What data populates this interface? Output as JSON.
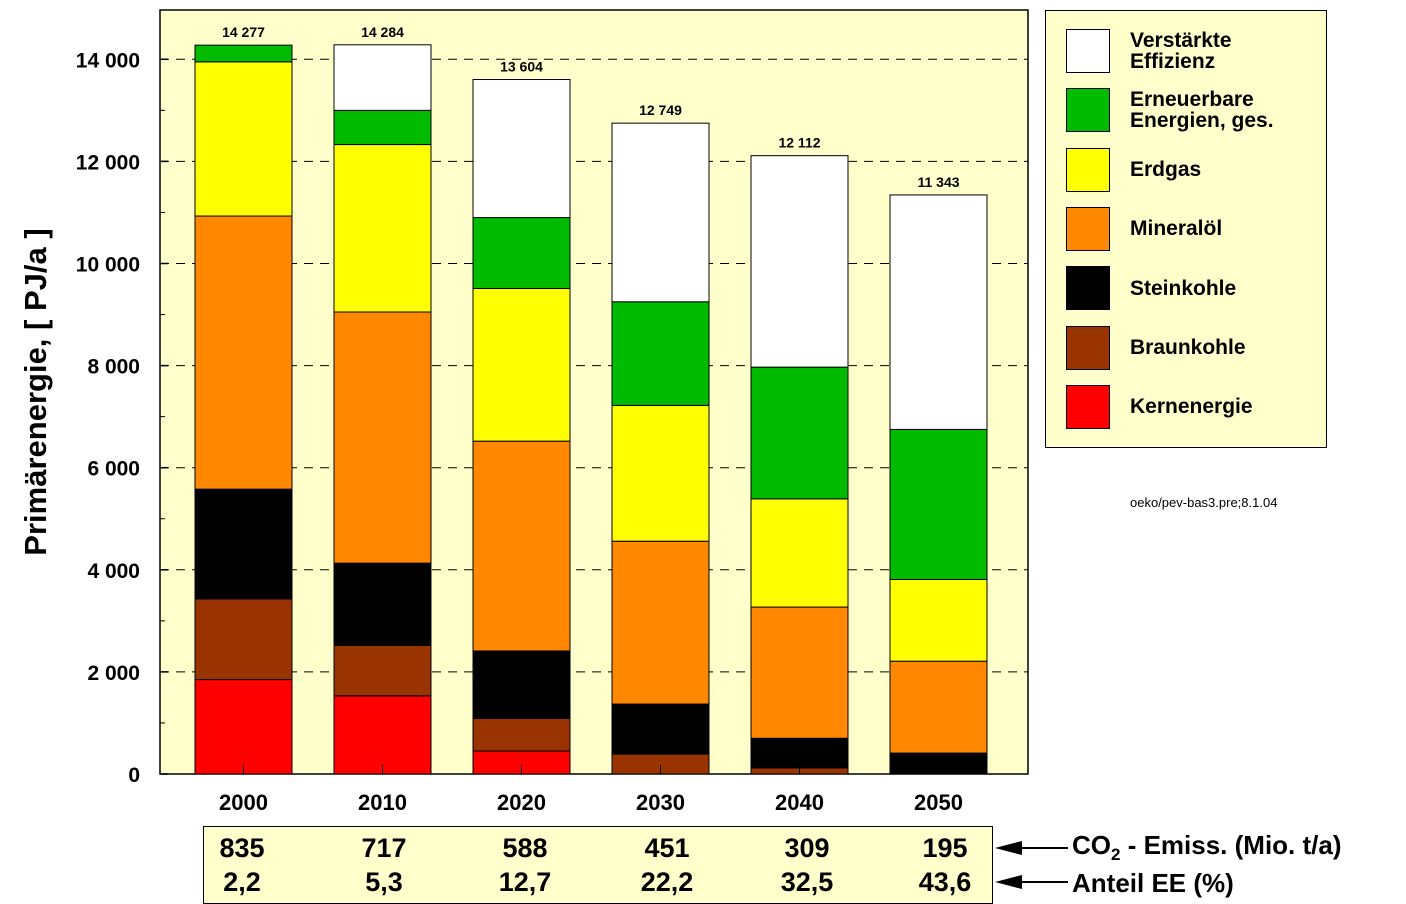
{
  "chart_data": {
    "type": "bar",
    "stacked": true,
    "ylabel": "Primärenergie, [ PJ/a ]",
    "ylim": [
      0,
      15000
    ],
    "yticks": [
      0,
      2000,
      4000,
      6000,
      8000,
      10000,
      12000,
      14000
    ],
    "ytick_labels": [
      "0",
      "2 000",
      "4 000",
      "6 000",
      "8 000",
      "10 000",
      "12 000",
      "14 000"
    ],
    "grid": "dashed horizontal",
    "categories": [
      "2000",
      "2010",
      "2020",
      "2030",
      "2040",
      "2050"
    ],
    "totals": [
      14277,
      14284,
      13604,
      12749,
      12112,
      11343
    ],
    "total_labels": [
      "14 277",
      "14 284",
      "13 604",
      "12 749",
      "12 112",
      "11 343"
    ],
    "series": [
      {
        "name": "Kernenergie",
        "color": "#ff0000",
        "values": [
          1850,
          1530,
          450,
          0,
          0,
          0
        ]
      },
      {
        "name": "Braunkohle",
        "color": "#993300",
        "values": [
          1580,
          990,
          640,
          390,
          120,
          0
        ]
      },
      {
        "name": "Steinkohle",
        "color": "#000000",
        "values": [
          2150,
          1610,
          1320,
          980,
          580,
          410
        ]
      },
      {
        "name": "Mineralöl",
        "color": "#ff8800",
        "values": [
          5350,
          4920,
          4110,
          3190,
          2570,
          1800
        ]
      },
      {
        "name": "Erdgas",
        "color": "#ffff00",
        "values": [
          3020,
          3280,
          2990,
          2660,
          2120,
          1600
        ]
      },
      {
        "name": "Erneuerbare Energien, ges.",
        "color": "#00bb00",
        "values": [
          327,
          670,
          1390,
          2030,
          2580,
          2940
        ]
      },
      {
        "name": "Verstärkte Effizienz",
        "color": "#ffffff",
        "values": [
          0,
          1284,
          2704,
          3499,
          4142,
          4593
        ]
      }
    ]
  },
  "legend": {
    "items": [
      {
        "label": "Verstärkte\nEffizienz",
        "color": "#ffffff"
      },
      {
        "label": "Erneuerbare\nEnergien, ges.",
        "color": "#00bb00"
      },
      {
        "label": "Erdgas",
        "color": "#ffff00"
      },
      {
        "label": "Mineralöl",
        "color": "#ff8800"
      },
      {
        "label": "Steinkohle",
        "color": "#000000"
      },
      {
        "label": "Braunkohle",
        "color": "#993300"
      },
      {
        "label": "Kernenergie",
        "color": "#ff0000"
      }
    ]
  },
  "note": "oeko/pev-bas3.pre;8.1.04",
  "table": {
    "co2_values": [
      "835",
      "717",
      "588",
      "451",
      "309",
      "195"
    ],
    "ee_values": [
      "2,2",
      "5,3",
      "12,7",
      "22,2",
      "32,5",
      "43,6"
    ],
    "co2_label_main": "CO",
    "co2_label_sub": "2",
    "co2_label_rest": " - Emiss. (Mio. t/a)",
    "ee_label": "Anteil EE (%)"
  },
  "colors": {
    "plot_background": "#ffffcc",
    "box_background": "#ffffcc"
  }
}
